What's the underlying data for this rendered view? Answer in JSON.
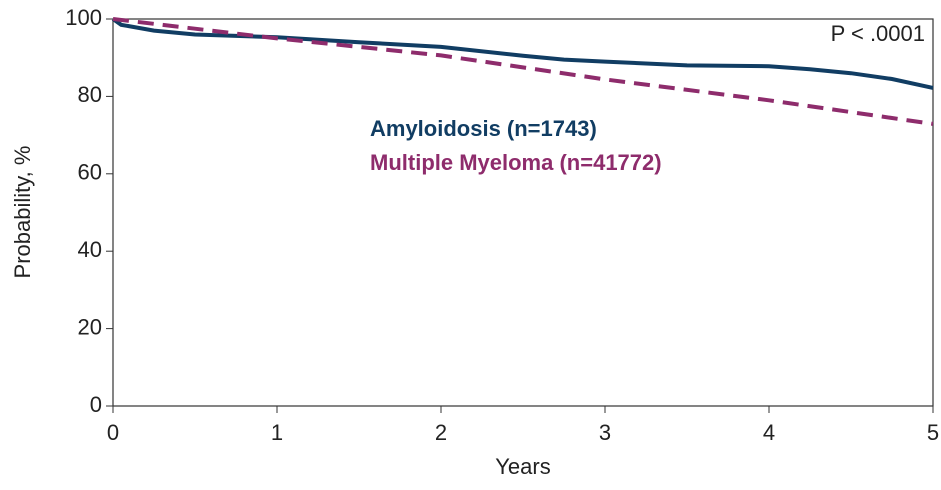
{
  "chart_data": {
    "type": "line",
    "x_label": "Years",
    "y_label": "Probability, %",
    "annotation": "P < .0001",
    "series": [
      {
        "name": "Amyloidosis (n=1743)",
        "color": "#113d63",
        "dash": false,
        "x": [
          0,
          0.05,
          0.25,
          0.5,
          1,
          1.5,
          2,
          2.5,
          2.75,
          3,
          3.5,
          4,
          4.25,
          4.5,
          4.75,
          5
        ],
        "values": [
          100,
          98.5,
          97,
          96,
          95.3,
          94,
          92.8,
          90.5,
          89.5,
          89,
          88,
          87.8,
          87,
          86,
          84.5,
          82.2
        ]
      },
      {
        "name": "Multiple Myeloma (n=41772)",
        "color": "#8e2c6c",
        "dash": true,
        "x": [
          0,
          1,
          2,
          3,
          4,
          5
        ],
        "values": [
          100,
          95,
          90.6,
          84.4,
          79,
          72.9
        ]
      }
    ],
    "xlim": [
      0,
      5
    ],
    "xticks": [
      0,
      1,
      2,
      3,
      4,
      5
    ],
    "ylim": [
      0,
      100
    ],
    "yticks": [
      0,
      20,
      40,
      60,
      80,
      100
    ]
  }
}
